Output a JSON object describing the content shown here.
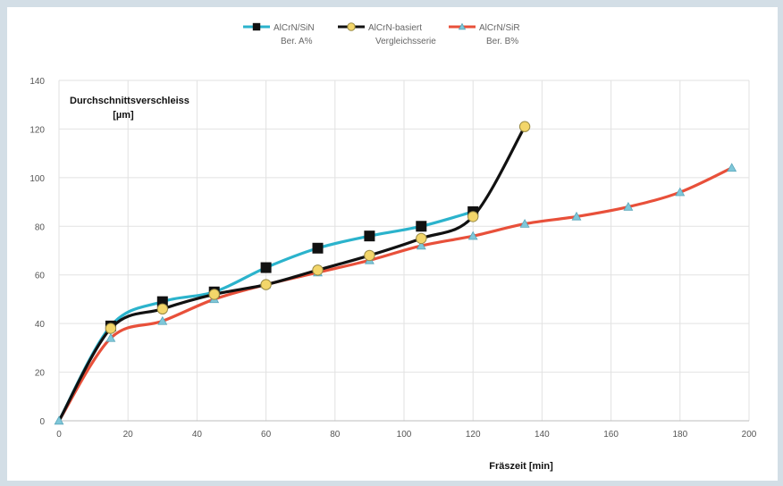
{
  "chart_data": {
    "type": "line",
    "ylabel_line1": "Durchschnittsverschleiss",
    "ylabel_line2": "[µm]",
    "xlabel": "Fräszeit [min]",
    "xlim": [
      0,
      200
    ],
    "ylim": [
      0,
      140
    ],
    "xticks": [
      0,
      20,
      40,
      60,
      80,
      100,
      120,
      140,
      160,
      180,
      200
    ],
    "yticks": [
      0,
      20,
      40,
      60,
      80,
      100,
      120,
      140
    ],
    "grid": true,
    "legend_position": "top-center",
    "series": [
      {
        "name": "AlCrN/SiN",
        "name_line2": "Ber. A%",
        "color": "#2bb3cc",
        "marker": "square",
        "marker_color": "#111111",
        "x": [
          0,
          15,
          30,
          45,
          60,
          75,
          90,
          105,
          120
        ],
        "y": [
          0,
          39,
          49,
          53,
          63,
          71,
          76,
          80,
          86
        ]
      },
      {
        "name": "AlCrN-basiert",
        "name_line2": "Vergleichsserie",
        "color": "#111111",
        "marker": "circle",
        "marker_color": "#f3d66a",
        "x": [
          0,
          15,
          30,
          45,
          60,
          75,
          90,
          105,
          120,
          135
        ],
        "y": [
          0,
          38,
          46,
          52,
          56,
          62,
          68,
          75,
          84,
          121
        ]
      },
      {
        "name": "AlCrN/SiR",
        "name_line2": "Ber. B%",
        "color": "#e8503a",
        "marker": "triangle",
        "marker_color": "#7fc7d9",
        "x": [
          0,
          15,
          30,
          45,
          60,
          75,
          90,
          105,
          120,
          135,
          150,
          165,
          180,
          195
        ],
        "y": [
          0,
          34,
          41,
          50,
          56,
          61,
          66,
          72,
          76,
          81,
          84,
          88,
          94,
          104
        ]
      }
    ]
  }
}
